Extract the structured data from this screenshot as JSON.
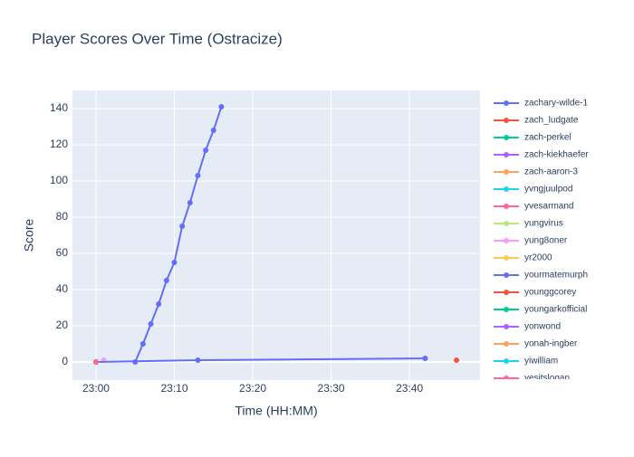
{
  "chart_data": {
    "type": "line",
    "title": "Player Scores Over Time (Ostracize)",
    "x_label": "Time (HH:MM)",
    "y_label": "Score",
    "xlim": [
      "22:57",
      "23:49"
    ],
    "xticks": [
      "23:00",
      "23:10",
      "23:20",
      "23:30",
      "23:40"
    ],
    "ylim": [
      -10,
      150
    ],
    "yticks": [
      0,
      20,
      40,
      60,
      80,
      100,
      120,
      140
    ],
    "grid": true,
    "legend": "right",
    "series": [
      {
        "name": "zachary-wilde-1",
        "color": "#636efa",
        "x": [
          "23:05",
          "23:06",
          "23:07",
          "23:08",
          "23:09",
          "23:10",
          "23:11",
          "23:12",
          "23:13",
          "23:14",
          "23:15",
          "23:16"
        ],
        "values": [
          0,
          10,
          21,
          32,
          45,
          55,
          75,
          88,
          103,
          117,
          128,
          141
        ]
      },
      {
        "name": "zach_ludgate",
        "color": "#EF553B",
        "x": [
          "23:46"
        ],
        "values": [
          1
        ]
      },
      {
        "name": "zach-perkel",
        "color": "#00cc96",
        "x": [
          "23:00"
        ],
        "values": [
          0
        ]
      },
      {
        "name": "zach-kiekhaefer",
        "color": "#ab63fa",
        "x": [
          "23:00"
        ],
        "values": [
          0
        ]
      },
      {
        "name": "zach-aaron-3",
        "color": "#FFA15A",
        "x": [
          "23:00"
        ],
        "values": [
          0
        ]
      },
      {
        "name": "yvngjuulpod",
        "color": "#19d3f3",
        "x": [
          "23:00"
        ],
        "values": [
          0
        ]
      },
      {
        "name": "yvesarmand",
        "color": "#FF6692",
        "x": [
          "23:00"
        ],
        "values": [
          0
        ]
      },
      {
        "name": "yungvirus",
        "color": "#B6E880",
        "x": [
          "23:00"
        ],
        "values": [
          0
        ]
      },
      {
        "name": "yung8oner",
        "color": "#FF97FF",
        "x": [
          "23:01"
        ],
        "values": [
          1
        ]
      },
      {
        "name": "yr2000",
        "color": "#FECB52",
        "x": [
          "23:00"
        ],
        "values": [
          0
        ]
      },
      {
        "name": "yourmatemurph",
        "color": "#636efa",
        "x": [
          "23:00",
          "23:13",
          "23:42"
        ],
        "values": [
          0,
          1,
          2
        ]
      },
      {
        "name": "younggcorey",
        "color": "#EF553B",
        "x": [
          "23:00"
        ],
        "values": [
          0
        ]
      },
      {
        "name": "youngarkofficial",
        "color": "#00cc96",
        "x": [
          "23:00"
        ],
        "values": [
          0
        ]
      },
      {
        "name": "yonwond",
        "color": "#ab63fa",
        "x": [
          "23:00"
        ],
        "values": [
          0
        ]
      },
      {
        "name": "yonah-ingber",
        "color": "#FFA15A",
        "x": [
          "23:00"
        ],
        "values": [
          0
        ]
      },
      {
        "name": "yiwilliam",
        "color": "#19d3f3",
        "x": [
          "23:00"
        ],
        "values": [
          0
        ]
      },
      {
        "name": "yesitslogan",
        "color": "#FF6692",
        "x": [
          "23:00"
        ],
        "values": [
          0
        ]
      }
    ]
  }
}
